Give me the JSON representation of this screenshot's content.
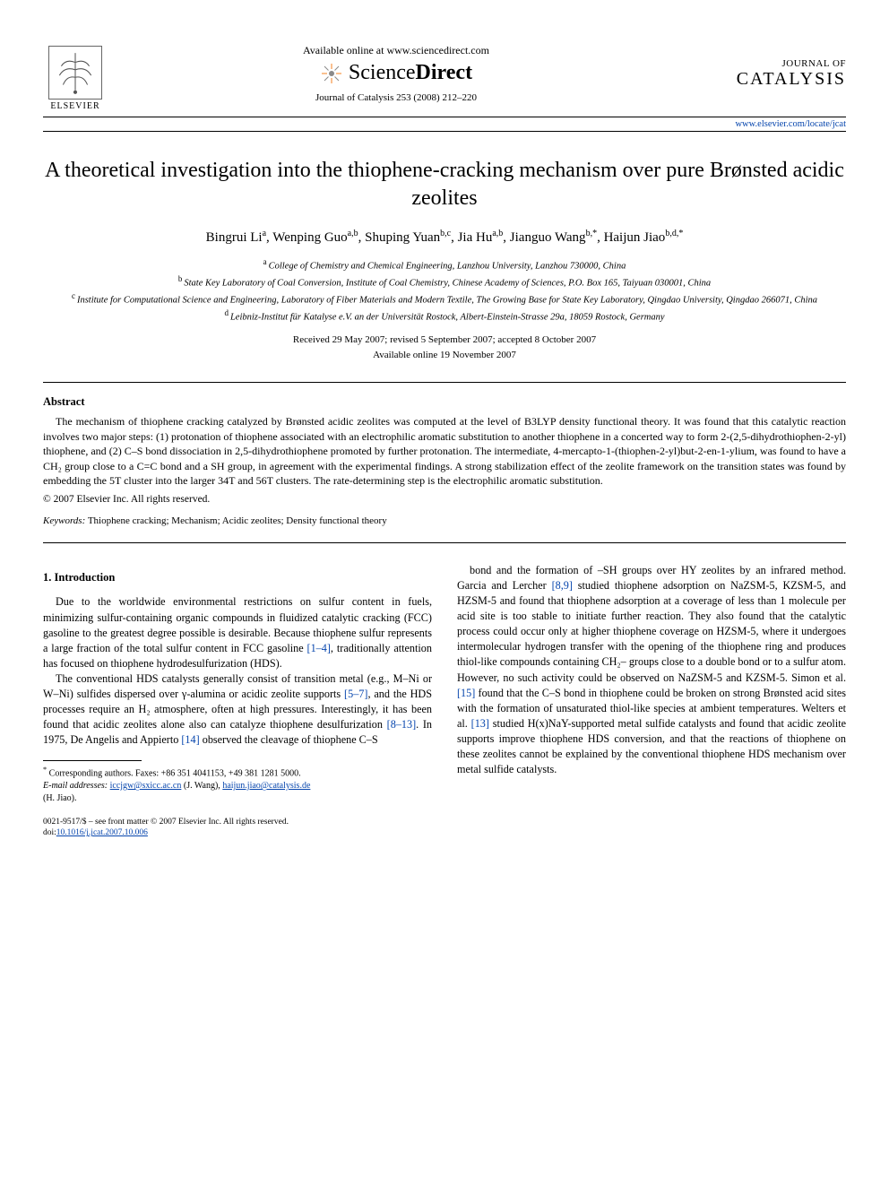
{
  "header": {
    "elsevier_label": "ELSEVIER",
    "available_online": "Available online at www.sciencedirect.com",
    "sd_brand_left": "Science",
    "sd_brand_right": "Direct",
    "journal_ref": "Journal of Catalysis 253 (2008) 212–220",
    "journal_logo_top": "JOURNAL OF",
    "journal_logo_bottom": "CATALYSIS",
    "journal_link": "www.elsevier.com/locate/jcat"
  },
  "title": "A theoretical investigation into the thiophene-cracking mechanism over pure Brønsted acidic zeolites",
  "authors": [
    {
      "name": "Bingrui Li",
      "aff": "a"
    },
    {
      "name": "Wenping Guo",
      "aff": "a,b"
    },
    {
      "name": "Shuping Yuan",
      "aff": "b,c"
    },
    {
      "name": "Jia Hu",
      "aff": "a,b"
    },
    {
      "name": "Jianguo Wang",
      "aff": "b,*"
    },
    {
      "name": "Haijun Jiao",
      "aff": "b,d,*"
    }
  ],
  "affiliations": {
    "a": "College of Chemistry and Chemical Engineering, Lanzhou University, Lanzhou 730000, China",
    "b": "State Key Laboratory of Coal Conversion, Institute of Coal Chemistry, Chinese Academy of Sciences, P.O. Box 165, Taiyuan 030001, China",
    "c": "Institute for Computational Science and Engineering, Laboratory of Fiber Materials and Modern Textile, The Growing Base for State Key Laboratory, Qingdao University, Qingdao 266071, China",
    "d": "Leibniz-Institut für Katalyse e.V. an der Universität Rostock, Albert-Einstein-Strasse 29a, 18059 Rostock, Germany"
  },
  "dates": {
    "received_line": "Received 29 May 2007; revised 5 September 2007; accepted 8 October 2007",
    "online_line": "Available online 19 November 2007"
  },
  "abstract": {
    "head": "Abstract",
    "body": "The mechanism of thiophene cracking catalyzed by Brønsted acidic zeolites was computed at the level of B3LYP density functional theory. It was found that this catalytic reaction involves two major steps: (1) protonation of thiophene associated with an electrophilic aromatic substitution to another thiophene in a concerted way to form 2-(2,5-dihydrothiophen-2-yl) thiophene, and (2) C–S bond dissociation in 2,5-dihydrothiophene promoted by further protonation. The intermediate, 4-mercapto-1-(thiophen-2-yl)but-2-en-1-ylium, was found to have a CH₂ group close to a C=C bond and a SH group, in agreement with the experimental findings. A strong stabilization effect of the zeolite framework on the transition states was found by embedding the 5T cluster into the larger 34T and 56T clusters. The rate-determining step is the electrophilic aromatic substitution.",
    "copyright": "© 2007 Elsevier Inc. All rights reserved."
  },
  "keywords": {
    "label": "Keywords:",
    "text": "Thiophene cracking; Mechanism; Acidic zeolites; Density functional theory"
  },
  "sections": {
    "intro_head": "1. Introduction",
    "p1": "Due to the worldwide environmental restrictions on sulfur content in fuels, minimizing sulfur-containing organic compounds in fluidized catalytic cracking (FCC) gasoline to the greatest degree possible is desirable. Because thiophene sulfur represents a large fraction of the total sulfur content in FCC gasoline [1–4], traditionally attention has focused on thiophene hydrodesulfurization (HDS).",
    "p2": "The conventional HDS catalysts generally consist of transition metal (e.g., M–Ni or W–Ni) sulfides dispersed over γ-alumina or acidic zeolite supports [5–7], and the HDS processes require an H₂ atmosphere, often at high pressures. Interestingly, it has been found that acidic zeolites alone also can catalyze thiophene desulfurization [8–13]. In 1975, De Angelis and Appierto [14] observed the cleavage of thiophene C–S",
    "p3": "bond and the formation of –SH groups over HY zeolites by an infrared method. Garcia and Lercher [8,9] studied thiophene adsorption on NaZSM-5, KZSM-5, and HZSM-5 and found that thiophene adsorption at a coverage of less than 1 molecule per acid site is too stable to initiate further reaction. They also found that the catalytic process could occur only at higher thiophene coverage on HZSM-5, where it undergoes intermolecular hydrogen transfer with the opening of the thiophene ring and produces thiol-like compounds containing CH₂– groups close to a double bond or to a sulfur atom. However, no such activity could be observed on NaZSM-5 and KZSM-5. Simon et al. [15] found that the C–S bond in thiophene could be broken on strong Brønsted acid sites with the formation of unsaturated thiol-like species at ambient temperatures. Welters et al. [13] studied H(x)NaY-supported metal sulfide catalysts and found that acidic zeolite supports improve thiophene HDS conversion, and that the reactions of thiophene on these zeolites cannot be explained by the conventional thiophene HDS mechanism over metal sulfide catalysts."
  },
  "footnotes": {
    "corresp": "Corresponding authors. Faxes: +86 351 4041153, +49 381 1281 5000.",
    "emails_label": "E-mail addresses:",
    "email1": "iccjgw@sxicc.ac.cn",
    "email1_who": "(J. Wang),",
    "email2": "haijun.jiao@catalysis.de",
    "email2_who": "(H. Jiao)."
  },
  "footer": {
    "issn_line": "0021-9517/$ – see front matter © 2007 Elsevier Inc. All rights reserved.",
    "doi_label": "doi:",
    "doi": "10.1016/j.jcat.2007.10.006"
  },
  "colors": {
    "link": "#0645ad",
    "text": "#000000",
    "bg": "#ffffff",
    "sd_orange": "#f58220",
    "sd_gray": "#8a8a8a"
  }
}
